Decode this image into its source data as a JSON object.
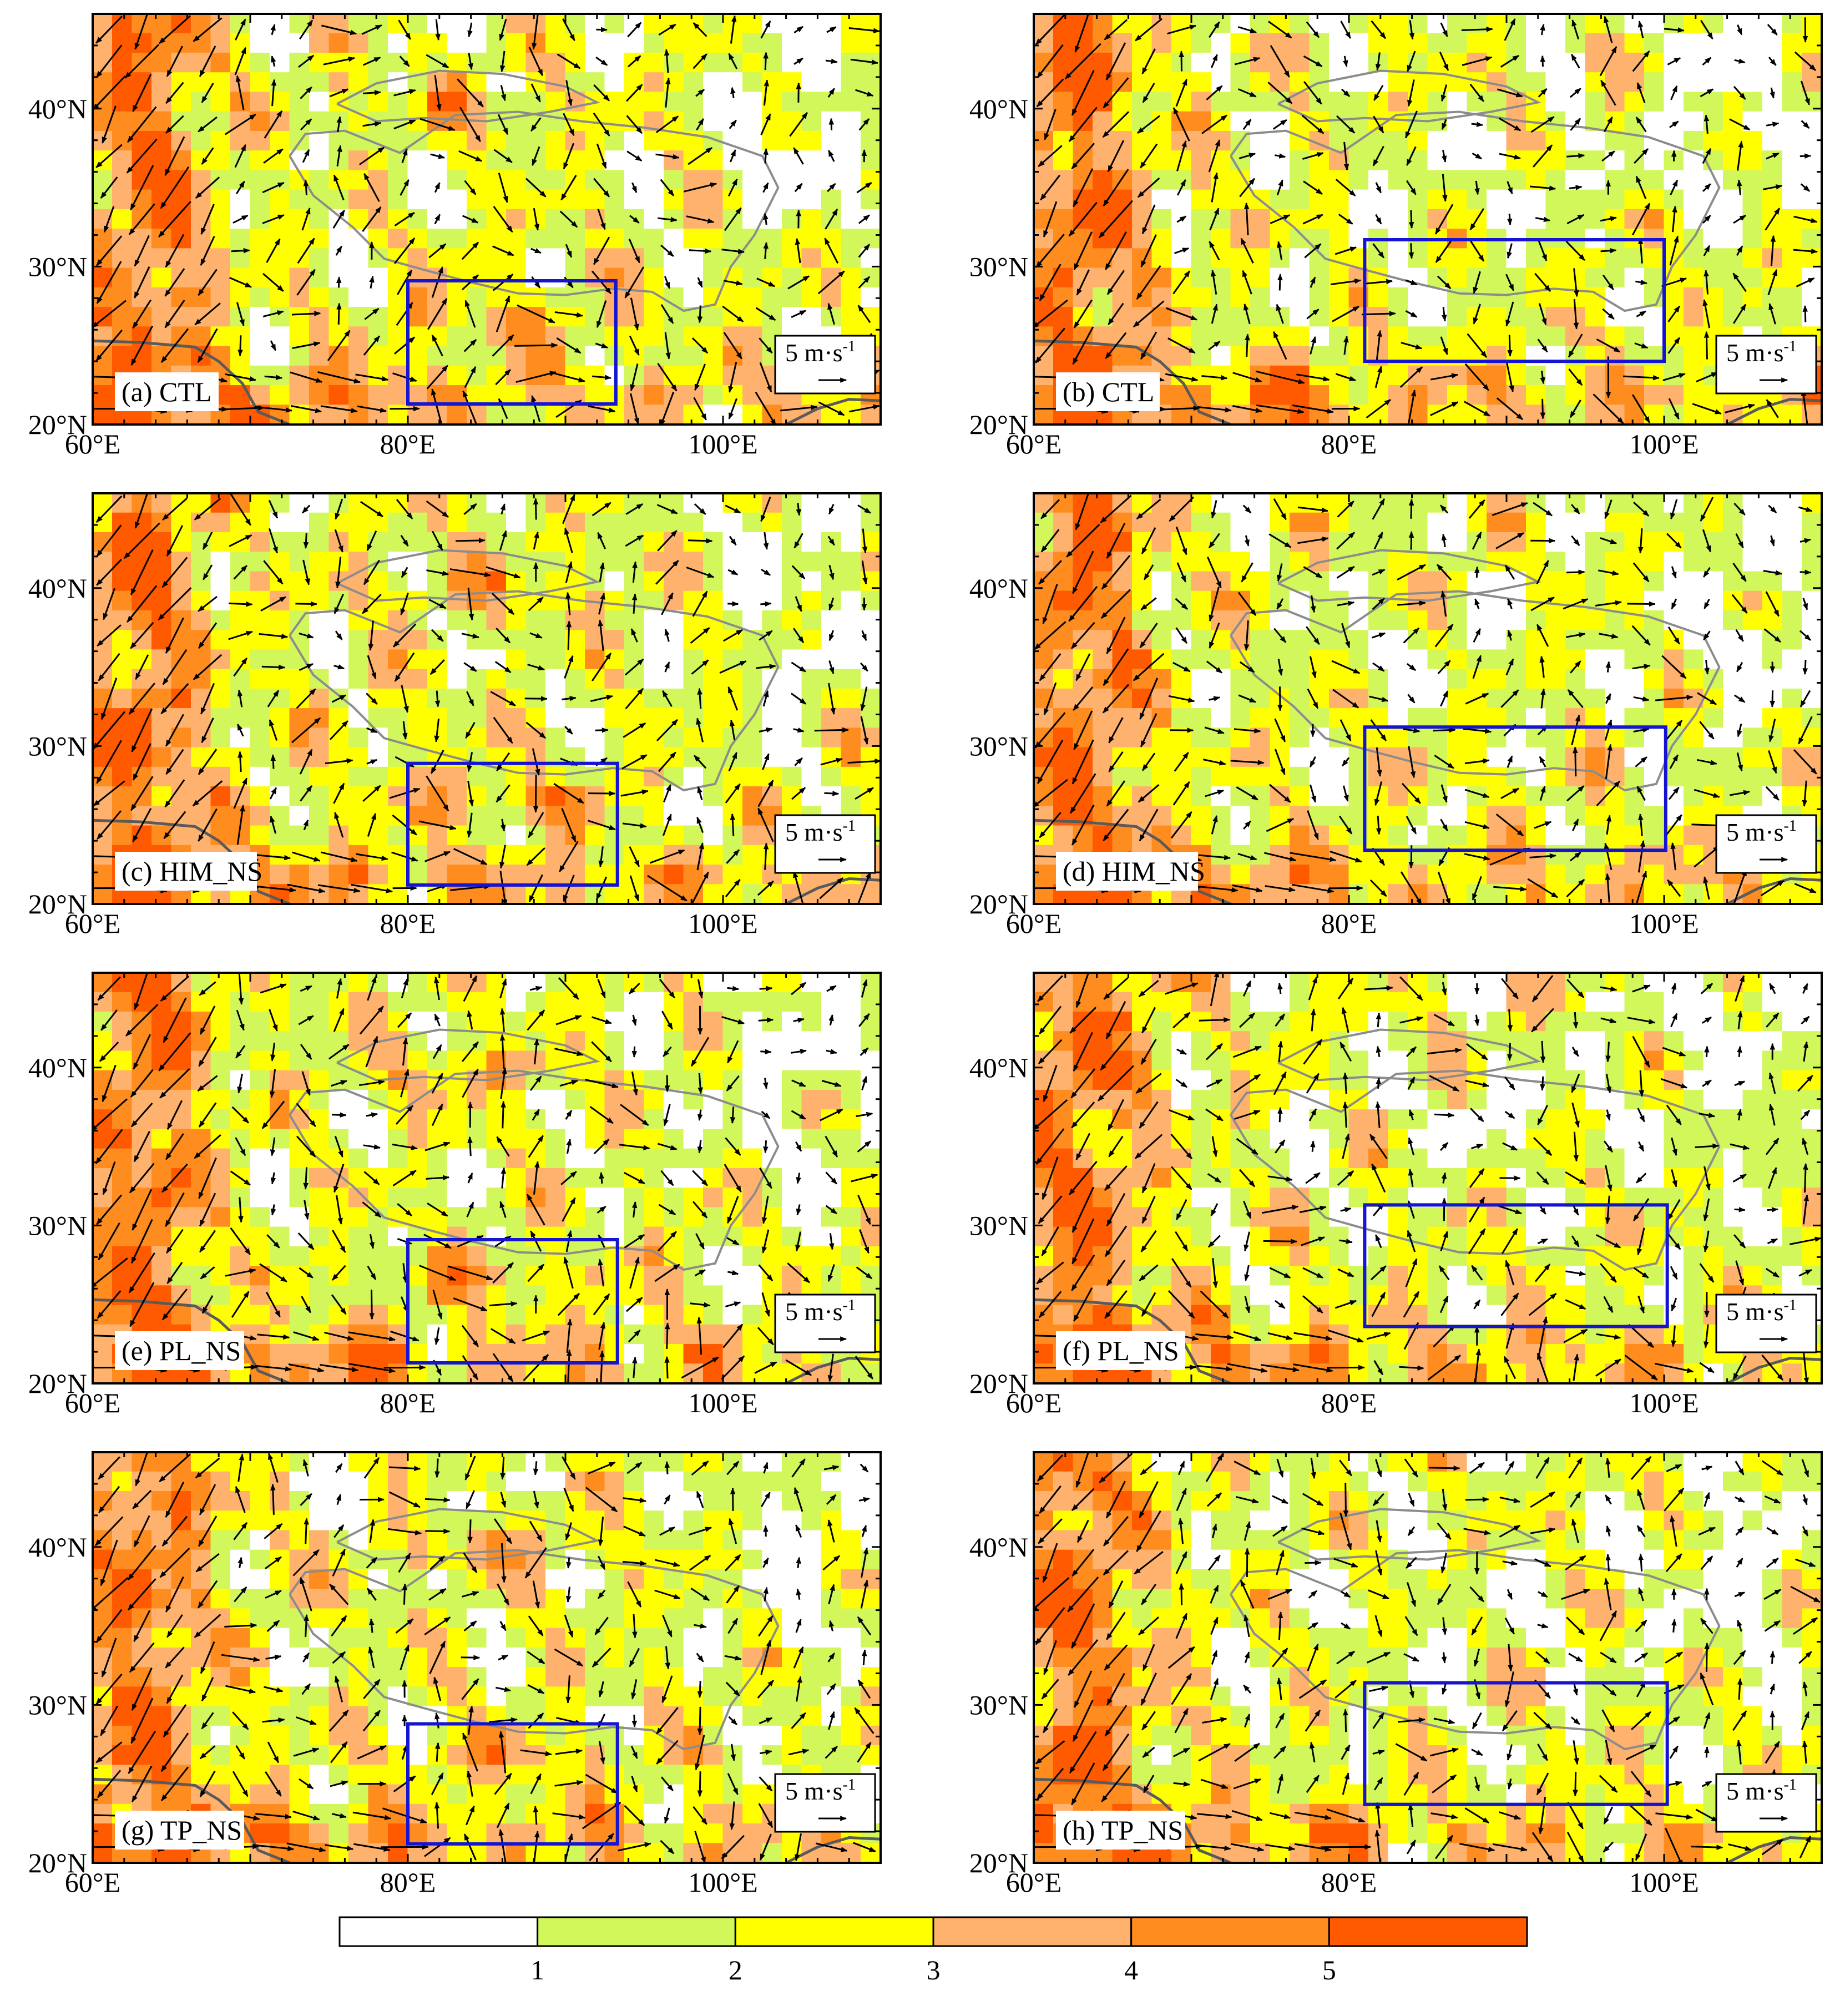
{
  "figure": {
    "colorbar": {
      "colors": [
        "#ffffff",
        "#d2f75a",
        "#ffff00",
        "#ffb26e",
        "#ff8c1e",
        "#ff5a00"
      ],
      "tick_labels": [
        "1",
        "2",
        "3",
        "4",
        "5"
      ]
    },
    "axis": {
      "lon_range": [
        60,
        110
      ],
      "lat_range": [
        20,
        46
      ],
      "lon_ticks": [
        "60°E",
        "80°E",
        "100°E"
      ],
      "lat_ticks": [
        "20°N",
        "30°N",
        "40°N"
      ]
    },
    "reference_vector": {
      "label": "5 m·s",
      "superscript": "-1"
    },
    "panels": [
      {
        "label": "(a) CTL",
        "box": {
          "lon": [
            80,
            93.2
          ],
          "lat": [
            21.3,
            29.1
          ]
        }
      },
      {
        "label": "(b) CTL",
        "box": {
          "lon": [
            81,
            100
          ],
          "lat": [
            24,
            31.7
          ]
        }
      },
      {
        "label": "(c) HIM_NS",
        "box": {
          "lon": [
            80,
            93.3
          ],
          "lat": [
            21.2,
            28.9
          ]
        }
      },
      {
        "label": "(d) HIM_NS",
        "box": {
          "lon": [
            81,
            100.1
          ],
          "lat": [
            23.4,
            31.2
          ]
        }
      },
      {
        "label": "(e) PL_NS",
        "box": {
          "lon": [
            80,
            93.3
          ],
          "lat": [
            21.3,
            29.1
          ]
        }
      },
      {
        "label": "(f) PL_NS",
        "box": {
          "lon": [
            81,
            100.2
          ],
          "lat": [
            23.6,
            31.3
          ]
        }
      },
      {
        "label": "(g) TP_NS",
        "box": {
          "lon": [
            80,
            93.3
          ],
          "lat": [
            21.2,
            28.8
          ]
        }
      },
      {
        "label": "(h) TP_NS",
        "box": {
          "lon": [
            81,
            100.2
          ],
          "lat": [
            23.7,
            31.4
          ]
        }
      }
    ]
  }
}
